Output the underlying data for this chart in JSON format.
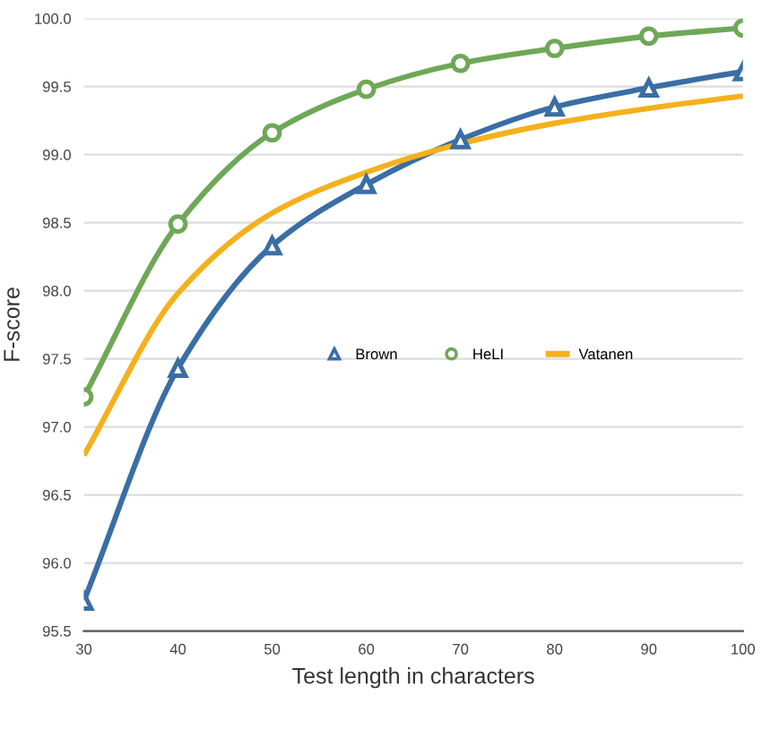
{
  "chart_data": {
    "type": "line",
    "xlabel": "Test length in characters",
    "ylabel": "F-score",
    "x": [
      30,
      40,
      50,
      60,
      70,
      80,
      90,
      100
    ],
    "series": [
      {
        "name": "Brown",
        "color": "#3a6ea5",
        "marker": "triangle",
        "values": [
          95.72,
          97.43,
          98.33,
          98.78,
          99.11,
          99.35,
          99.49,
          99.61
        ]
      },
      {
        "name": "HeLI",
        "color": "#6ea857",
        "marker": "circle",
        "values": [
          97.22,
          98.49,
          99.16,
          99.48,
          99.67,
          99.78,
          99.87,
          99.93
        ]
      },
      {
        "name": "Vatanen",
        "color": "#f5b01c",
        "marker": "none",
        "values": [
          96.79,
          97.98,
          98.57,
          98.87,
          99.08,
          99.23,
          99.34,
          99.43
        ]
      }
    ],
    "xlim": [
      30,
      100
    ],
    "xticks": [
      30,
      40,
      50,
      60,
      70,
      80,
      90,
      100
    ],
    "ylim": [
      95.5,
      100
    ],
    "yticks": [
      {
        "value": 95.5,
        "label": "95.5"
      },
      {
        "value": 96,
        "label": "96.0"
      },
      {
        "value": 96.5,
        "label": "96.5"
      },
      {
        "value": 97,
        "label": "97.0"
      },
      {
        "value": 97.5,
        "label": "97.5"
      },
      {
        "value": 98,
        "label": "98.0"
      },
      {
        "value": 98.5,
        "label": "98.5"
      },
      {
        "value": 99,
        "label": "99.0"
      },
      {
        "value": 99.5,
        "label": "99.5"
      },
      {
        "value": 100,
        "label": "100.0"
      }
    ],
    "grid": "y",
    "legend": "center",
    "line_style": "solid"
  }
}
